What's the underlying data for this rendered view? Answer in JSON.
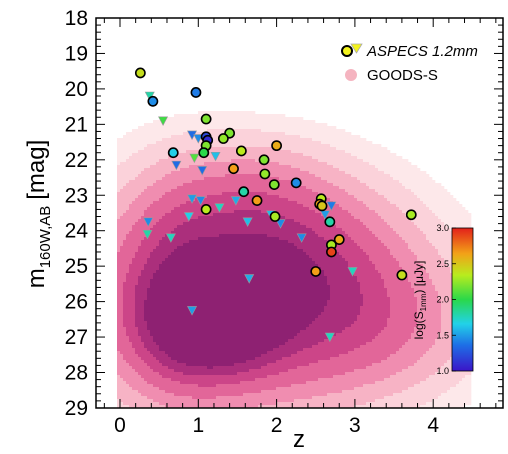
{
  "chart_data": {
    "type": "scatter",
    "xlabel": "z",
    "ylabel": "m",
    "ylabel_sub": "160W,AB",
    "ylabel_unit": "[mag]",
    "xlim": [
      -0.2,
      4.9
    ],
    "ylim": [
      29,
      18
    ],
    "y_inverted": true,
    "x_ticks": [
      "0",
      "1",
      "2",
      "3",
      "4"
    ],
    "y_ticks": [
      "18",
      "19",
      "20",
      "21",
      "22",
      "23",
      "24",
      "25",
      "26",
      "27",
      "28",
      "29"
    ],
    "legend": [
      {
        "label": "ASPECS 1.2mm",
        "markers": [
          "circle",
          "triangle-down"
        ],
        "color": "#f2f21e",
        "italic": true
      },
      {
        "label": "GOODS-S",
        "marker": "circle",
        "color": "#f5b4c0"
      }
    ],
    "legend_position": "top-right",
    "colorbar": {
      "label_main": "log(S",
      "label_sub": "1mm",
      "label_end": ") [μJy]",
      "min": 1.0,
      "max": 3.0,
      "ticks": [
        "1.0",
        "1.5",
        "2.0",
        "2.5",
        "3.0"
      ]
    },
    "density_background": {
      "name": "GOODS-S",
      "colors": [
        "#fde8ea",
        "#fbd2da",
        "#f7b3c5",
        "#f08db0",
        "#e26699",
        "#cc4588",
        "#ab2f7c",
        "#8e2172"
      ],
      "blobs": [
        {
          "x": 1.4,
          "y": 26.0,
          "sx": 1.4,
          "sy": 2.2,
          "w": 0.9
        },
        {
          "x": 1.2,
          "y": 26.6,
          "sx": 0.55,
          "sy": 0.95,
          "w": 1.0
        },
        {
          "x": 0.7,
          "y": 25.6,
          "sx": 0.45,
          "sy": 2.0,
          "w": 0.35
        },
        {
          "x": 1.9,
          "y": 24.4,
          "sx": 0.9,
          "sy": 1.4,
          "w": 0.3
        },
        {
          "x": 2.5,
          "y": 25.3,
          "sx": 1.0,
          "sy": 1.6,
          "w": 0.32
        },
        {
          "x": 3.4,
          "y": 26.8,
          "sx": 0.9,
          "sy": 1.3,
          "w": 0.3
        },
        {
          "x": 1.6,
          "y": 22.8,
          "sx": 0.7,
          "sy": 1.0,
          "w": 0.2
        }
      ]
    },
    "detections": [
      {
        "x": 0.26,
        "y": 19.55,
        "logS": 2.4
      },
      {
        "x": 0.42,
        "y": 20.35,
        "logS": 1.45
      },
      {
        "x": 0.97,
        "y": 20.1,
        "logS": 1.4
      },
      {
        "x": 0.68,
        "y": 21.8,
        "logS": 1.65
      },
      {
        "x": 1.1,
        "y": 20.85,
        "logS": 2.2
      },
      {
        "x": 1.1,
        "y": 21.35,
        "logS": 1.2
      },
      {
        "x": 1.12,
        "y": 21.45,
        "logS": 1.1
      },
      {
        "x": 1.1,
        "y": 21.6,
        "logS": 2.2
      },
      {
        "x": 1.07,
        "y": 21.8,
        "logS": 2.0
      },
      {
        "x": 1.4,
        "y": 21.25,
        "logS": 2.2
      },
      {
        "x": 1.32,
        "y": 21.4,
        "logS": 2.25
      },
      {
        "x": 1.55,
        "y": 21.75,
        "logS": 2.35
      },
      {
        "x": 1.45,
        "y": 22.25,
        "logS": 2.65
      },
      {
        "x": 1.84,
        "y": 22.0,
        "logS": 2.2
      },
      {
        "x": 2.0,
        "y": 21.6,
        "logS": 2.6
      },
      {
        "x": 1.85,
        "y": 22.4,
        "logS": 2.25
      },
      {
        "x": 1.97,
        "y": 22.7,
        "logS": 2.2
      },
      {
        "x": 2.25,
        "y": 22.65,
        "logS": 1.45
      },
      {
        "x": 1.58,
        "y": 22.9,
        "logS": 1.8
      },
      {
        "x": 1.75,
        "y": 23.15,
        "logS": 2.65
      },
      {
        "x": 1.1,
        "y": 23.4,
        "logS": 2.35
      },
      {
        "x": 2.57,
        "y": 23.1,
        "logS": 2.35
      },
      {
        "x": 2.55,
        "y": 23.25,
        "logS": 2.65
      },
      {
        "x": 2.58,
        "y": 23.3,
        "logS": 2.5
      },
      {
        "x": 1.98,
        "y": 23.6,
        "logS": 2.3
      },
      {
        "x": 2.68,
        "y": 23.75,
        "logS": 1.8
      },
      {
        "x": 2.7,
        "y": 24.4,
        "logS": 2.3
      },
      {
        "x": 2.8,
        "y": 24.25,
        "logS": 2.6
      },
      {
        "x": 2.7,
        "y": 24.6,
        "logS": 2.9
      },
      {
        "x": 2.5,
        "y": 25.15,
        "logS": 2.65
      },
      {
        "x": 3.6,
        "y": 25.25,
        "logS": 2.4
      },
      {
        "x": 3.72,
        "y": 23.55,
        "logS": 2.3
      }
    ],
    "upper_limits": [
      {
        "x": 0.38,
        "y": 20.2,
        "logS": 1.8
      },
      {
        "x": 0.55,
        "y": 20.9,
        "logS": 2.05
      },
      {
        "x": 0.92,
        "y": 21.3,
        "logS": 1.35
      },
      {
        "x": 1.0,
        "y": 21.4,
        "logS": 1.45
      },
      {
        "x": 0.95,
        "y": 21.95,
        "logS": 2.1
      },
      {
        "x": 0.72,
        "y": 22.15,
        "logS": 1.35
      },
      {
        "x": 1.05,
        "y": 22.3,
        "logS": 1.35
      },
      {
        "x": 1.22,
        "y": 21.9,
        "logS": 1.6
      },
      {
        "x": 0.92,
        "y": 23.1,
        "logS": 1.5
      },
      {
        "x": 0.88,
        "y": 23.6,
        "logS": 1.65
      },
      {
        "x": 1.03,
        "y": 23.15,
        "logS": 1.45
      },
      {
        "x": 1.27,
        "y": 23.35,
        "logS": 1.75
      },
      {
        "x": 1.48,
        "y": 23.15,
        "logS": 1.55
      },
      {
        "x": 1.63,
        "y": 23.75,
        "logS": 1.6
      },
      {
        "x": 1.93,
        "y": 23.55,
        "logS": 1.6
      },
      {
        "x": 2.05,
        "y": 23.8,
        "logS": 1.45
      },
      {
        "x": 2.32,
        "y": 24.2,
        "logS": 1.45
      },
      {
        "x": 2.62,
        "y": 23.55,
        "logS": 1.5
      },
      {
        "x": 2.7,
        "y": 23.3,
        "logS": 1.4
      },
      {
        "x": 0.36,
        "y": 23.75,
        "logS": 1.45
      },
      {
        "x": 0.35,
        "y": 24.1,
        "logS": 1.8
      },
      {
        "x": 0.65,
        "y": 24.2,
        "logS": 1.75
      },
      {
        "x": 2.97,
        "y": 25.15,
        "logS": 1.75
      },
      {
        "x": 1.65,
        "y": 25.35,
        "logS": 1.55
      },
      {
        "x": 0.92,
        "y": 26.25,
        "logS": 1.5
      },
      {
        "x": 2.68,
        "y": 27.0,
        "logS": 1.75
      }
    ]
  }
}
